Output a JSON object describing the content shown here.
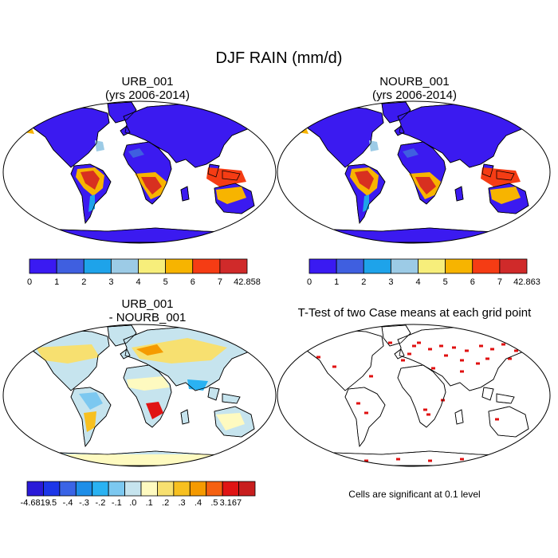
{
  "figure": {
    "title": "DJF RAIN (mm/d)",
    "note": "Cells are significant at 0.1 level"
  },
  "panels": [
    {
      "id": "urb",
      "title_line1": "URB_001",
      "title_line2": "(yrs 2006-2014)"
    },
    {
      "id": "nourb",
      "title_line1": "NOURB_001",
      "title_line2": "(yrs 2006-2014)"
    },
    {
      "id": "diff",
      "title_line1": "URB_001",
      "title_line2": "- NOURB_001"
    },
    {
      "id": "ttest",
      "title_line1": "T-Test of two Case means at each grid point",
      "title_line2": ""
    }
  ],
  "colorbars": {
    "urb": {
      "labels": [
        "0",
        "1",
        "2",
        "3",
        "4",
        "5",
        "6",
        "7",
        "42.858"
      ],
      "colors": [
        "#3a1af2",
        "#3f5fe0",
        "#1ea3ea",
        "#9ccbe6",
        "#f7ee7b",
        "#f7b400",
        "#f53c14",
        "#d02a2a"
      ]
    },
    "nourb": {
      "labels": [
        "0",
        "1",
        "2",
        "3",
        "4",
        "5",
        "6",
        "7",
        "42.863"
      ],
      "colors": [
        "#3a1af2",
        "#3f5fe0",
        "#1ea3ea",
        "#9ccbe6",
        "#f7ee7b",
        "#f7b400",
        "#f53c14",
        "#d02a2a"
      ]
    },
    "diff": {
      "labels": [
        "-4.6819",
        "-.5",
        "-.4",
        "-.3",
        "-.2",
        "-.1",
        ".0",
        ".1",
        ".2",
        ".3",
        ".4",
        ".5",
        "3.167"
      ],
      "colors": [
        "#2a1ad8",
        "#1c36e8",
        "#3a64e6",
        "#1e8ee8",
        "#2ab2f2",
        "#7cc8f0",
        "#c6e4ee",
        "#fefac0",
        "#f7e070",
        "#f7c020",
        "#f59a00",
        "#f56010",
        "#e01414",
        "#c81e1e"
      ]
    }
  },
  "colors": {
    "wet": "#d83020",
    "dry": "#3b1af0",
    "significant": "#e01010"
  }
}
